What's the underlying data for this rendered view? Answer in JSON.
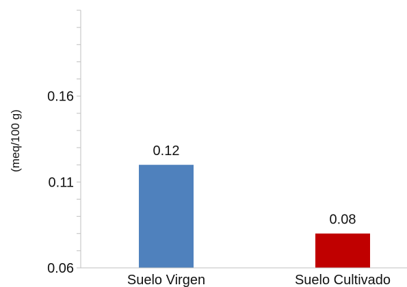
{
  "chart_data": {
    "type": "bar",
    "title": "",
    "xlabel": "",
    "ylabel": "(meq/100 g)",
    "categories": [
      "Suelo Virgen",
      "Suelo Cultivado"
    ],
    "values": [
      0.12,
      0.08
    ],
    "data_labels": [
      "0.12",
      "0.08"
    ],
    "colors": [
      "#4f81bd",
      "#c00000"
    ],
    "ylim": [
      0.06,
      0.21
    ],
    "yticks": [
      0.06,
      0.11,
      0.16
    ],
    "ytick_labels": [
      "0.06",
      "0.11",
      "0.16"
    ],
    "minor_tick_step": 0.01,
    "grid": false,
    "legend": "none"
  }
}
